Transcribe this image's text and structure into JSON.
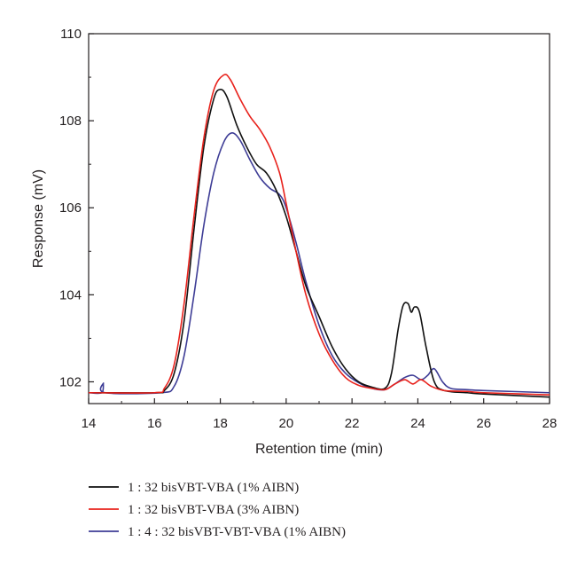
{
  "chart_data": {
    "type": "line",
    "xlabel": "Retention time (min)",
    "ylabel": "Response (mV)",
    "xlim": [
      14,
      28
    ],
    "ylim": [
      101.5,
      110
    ],
    "xticks": [
      "14",
      "16",
      "18",
      "20",
      "22",
      "24",
      "26",
      "28"
    ],
    "yticks": [
      "102",
      "104",
      "106",
      "108",
      "110"
    ],
    "grid": false,
    "legend_position": "bottom",
    "series": [
      {
        "name": "1 : 32 bisVBT-VBA (1% AIBN)",
        "color": "#111111",
        "points": [
          [
            14,
            101.75
          ],
          [
            16.0,
            101.75
          ],
          [
            16.3,
            101.8
          ],
          [
            16.6,
            102.2
          ],
          [
            16.9,
            103.4
          ],
          [
            17.2,
            105.5
          ],
          [
            17.5,
            107.4
          ],
          [
            17.8,
            108.5
          ],
          [
            18.0,
            108.72
          ],
          [
            18.2,
            108.55
          ],
          [
            18.5,
            107.9
          ],
          [
            18.8,
            107.4
          ],
          [
            19.1,
            107.0
          ],
          [
            19.4,
            106.8
          ],
          [
            19.7,
            106.4
          ],
          [
            20.0,
            105.8
          ],
          [
            20.3,
            105.0
          ],
          [
            20.6,
            104.2
          ],
          [
            21.0,
            103.5
          ],
          [
            21.4,
            102.8
          ],
          [
            21.8,
            102.3
          ],
          [
            22.2,
            102.0
          ],
          [
            22.6,
            101.88
          ],
          [
            23.0,
            101.85
          ],
          [
            23.2,
            102.2
          ],
          [
            23.4,
            103.2
          ],
          [
            23.55,
            103.75
          ],
          [
            23.7,
            103.8
          ],
          [
            23.8,
            103.6
          ],
          [
            23.9,
            103.72
          ],
          [
            24.05,
            103.6
          ],
          [
            24.25,
            102.8
          ],
          [
            24.5,
            102.0
          ],
          [
            24.8,
            101.8
          ],
          [
            25.5,
            101.75
          ],
          [
            26.0,
            101.72
          ],
          [
            28.0,
            101.65
          ]
        ]
      },
      {
        "name": "1 : 32 bisVBT-VBA (3% AIBN)",
        "color": "#e8221c",
        "points": [
          [
            14,
            101.75
          ],
          [
            16.0,
            101.75
          ],
          [
            16.3,
            101.85
          ],
          [
            16.6,
            102.4
          ],
          [
            16.9,
            103.8
          ],
          [
            17.2,
            105.8
          ],
          [
            17.5,
            107.6
          ],
          [
            17.8,
            108.7
          ],
          [
            18.1,
            109.05
          ],
          [
            18.3,
            108.95
          ],
          [
            18.6,
            108.5
          ],
          [
            18.9,
            108.1
          ],
          [
            19.2,
            107.8
          ],
          [
            19.5,
            107.4
          ],
          [
            19.8,
            106.8
          ],
          [
            20.0,
            106.1
          ],
          [
            20.3,
            105.0
          ],
          [
            20.6,
            104.0
          ],
          [
            21.0,
            103.1
          ],
          [
            21.4,
            102.5
          ],
          [
            21.8,
            102.1
          ],
          [
            22.2,
            101.92
          ],
          [
            22.6,
            101.85
          ],
          [
            23.0,
            101.82
          ],
          [
            23.3,
            101.95
          ],
          [
            23.6,
            102.05
          ],
          [
            23.85,
            101.95
          ],
          [
            24.1,
            102.05
          ],
          [
            24.4,
            101.9
          ],
          [
            24.8,
            101.8
          ],
          [
            25.5,
            101.78
          ],
          [
            26.0,
            101.75
          ],
          [
            28.0,
            101.7
          ]
        ]
      },
      {
        "name": "1 : 4 : 32 bisVBT-VBT-VBA (1% AIBN)",
        "color": "#3e3d96",
        "points": [
          [
            14,
            101.75
          ],
          [
            14.4,
            101.75
          ],
          [
            14.45,
            101.97
          ],
          [
            14.5,
            101.75
          ],
          [
            16.2,
            101.75
          ],
          [
            16.6,
            101.9
          ],
          [
            16.9,
            102.6
          ],
          [
            17.2,
            104.0
          ],
          [
            17.5,
            105.6
          ],
          [
            17.8,
            106.8
          ],
          [
            18.1,
            107.5
          ],
          [
            18.35,
            107.72
          ],
          [
            18.6,
            107.55
          ],
          [
            18.9,
            107.1
          ],
          [
            19.2,
            106.7
          ],
          [
            19.5,
            106.45
          ],
          [
            19.8,
            106.3
          ],
          [
            20.0,
            106.0
          ],
          [
            20.3,
            105.2
          ],
          [
            20.6,
            104.3
          ],
          [
            21.0,
            103.3
          ],
          [
            21.4,
            102.6
          ],
          [
            21.8,
            102.2
          ],
          [
            22.2,
            101.98
          ],
          [
            22.6,
            101.85
          ],
          [
            23.0,
            101.82
          ],
          [
            23.3,
            101.95
          ],
          [
            23.6,
            102.1
          ],
          [
            23.85,
            102.15
          ],
          [
            24.1,
            102.05
          ],
          [
            24.3,
            102.15
          ],
          [
            24.5,
            102.3
          ],
          [
            24.75,
            102.0
          ],
          [
            25.0,
            101.85
          ],
          [
            25.5,
            101.82
          ],
          [
            26.0,
            101.8
          ],
          [
            28.0,
            101.75
          ]
        ]
      }
    ]
  }
}
